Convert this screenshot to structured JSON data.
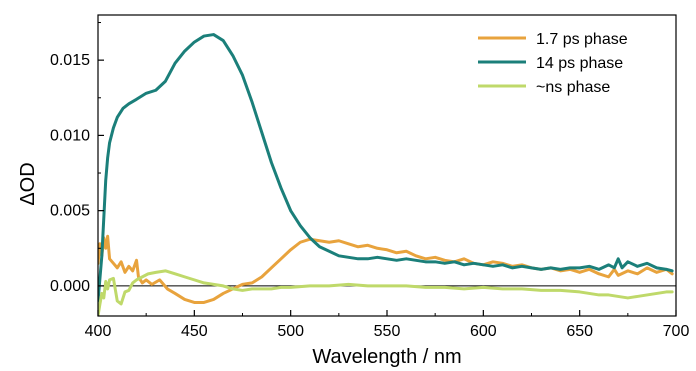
{
  "chart_data": {
    "type": "line",
    "title": "",
    "xlabel": "Wavelength / nm",
    "ylabel": "ΔOD",
    "xlim": [
      400,
      700
    ],
    "ylim": [
      -0.002,
      0.018
    ],
    "x_ticks": [
      400,
      450,
      500,
      550,
      600,
      650,
      700
    ],
    "y_ticks": [
      0.0,
      0.005,
      0.01,
      0.015
    ],
    "x_tick_labels": [
      "400",
      "450",
      "500",
      "550",
      "600",
      "650",
      "700"
    ],
    "y_tick_labels": [
      "0.000",
      "0.005",
      "0.010",
      "0.015"
    ],
    "zero_line": true,
    "grid": false,
    "legend_position": "top-right",
    "series": [
      {
        "name": "1.7 ps phase",
        "color": "#E8A33D",
        "points": [
          [
            400,
            0.0015
          ],
          [
            401,
            0.0028
          ],
          [
            402,
            0.002
          ],
          [
            403,
            0.0032
          ],
          [
            404,
            0.0025
          ],
          [
            405,
            0.0033
          ],
          [
            406,
            0.0018
          ],
          [
            408,
            0.0015
          ],
          [
            410,
            0.0012
          ],
          [
            412,
            0.0016
          ],
          [
            414,
            0.0009
          ],
          [
            416,
            0.0013
          ],
          [
            418,
            0.001
          ],
          [
            420,
            0.0017
          ],
          [
            421,
            0.0006
          ],
          [
            423,
            0.0002
          ],
          [
            425,
            0.0004
          ],
          [
            428,
            0.0001
          ],
          [
            432,
            0.0004
          ],
          [
            436,
            -0.0002
          ],
          [
            440,
            -0.0005
          ],
          [
            445,
            -0.0009
          ],
          [
            450,
            -0.0011
          ],
          [
            455,
            -0.0011
          ],
          [
            460,
            -0.0009
          ],
          [
            465,
            -0.0005
          ],
          [
            470,
            -0.0002
          ],
          [
            475,
            0.0001
          ],
          [
            480,
            0.0002
          ],
          [
            485,
            0.0006
          ],
          [
            490,
            0.0012
          ],
          [
            495,
            0.0018
          ],
          [
            500,
            0.0024
          ],
          [
            505,
            0.0029
          ],
          [
            510,
            0.0031
          ],
          [
            515,
            0.003
          ],
          [
            520,
            0.0029
          ],
          [
            525,
            0.003
          ],
          [
            530,
            0.0028
          ],
          [
            535,
            0.0026
          ],
          [
            540,
            0.0027
          ],
          [
            545,
            0.0025
          ],
          [
            550,
            0.0024
          ],
          [
            555,
            0.0022
          ],
          [
            560,
            0.0023
          ],
          [
            565,
            0.002
          ],
          [
            570,
            0.0018
          ],
          [
            575,
            0.0019
          ],
          [
            580,
            0.0017
          ],
          [
            585,
            0.0016
          ],
          [
            590,
            0.0018
          ],
          [
            595,
            0.0015
          ],
          [
            600,
            0.0014
          ],
          [
            605,
            0.0016
          ],
          [
            610,
            0.0015
          ],
          [
            615,
            0.0013
          ],
          [
            620,
            0.0014
          ],
          [
            625,
            0.0012
          ],
          [
            630,
            0.0011
          ],
          [
            635,
            0.0012
          ],
          [
            640,
            0.001
          ],
          [
            645,
            0.0011
          ],
          [
            650,
            0.0009
          ],
          [
            655,
            0.0011
          ],
          [
            660,
            0.0008
          ],
          [
            665,
            0.0006
          ],
          [
            668,
            0.0011
          ],
          [
            670,
            0.0007
          ],
          [
            675,
            0.001
          ],
          [
            680,
            0.0008
          ],
          [
            685,
            0.0012
          ],
          [
            690,
            0.0009
          ],
          [
            695,
            0.0011
          ],
          [
            698,
            0.0008
          ]
        ]
      },
      {
        "name": "14 ps phase",
        "color": "#1B7F7A",
        "points": [
          [
            400,
            -0.001
          ],
          [
            401,
            0.0005
          ],
          [
            402,
            0.002
          ],
          [
            403,
            0.0045
          ],
          [
            404,
            0.007
          ],
          [
            405,
            0.0085
          ],
          [
            406,
            0.0095
          ],
          [
            408,
            0.0105
          ],
          [
            410,
            0.0112
          ],
          [
            413,
            0.0118
          ],
          [
            416,
            0.0121
          ],
          [
            420,
            0.0124
          ],
          [
            425,
            0.0128
          ],
          [
            430,
            0.013
          ],
          [
            435,
            0.0136
          ],
          [
            440,
            0.0148
          ],
          [
            445,
            0.0156
          ],
          [
            450,
            0.0162
          ],
          [
            455,
            0.0166
          ],
          [
            460,
            0.0167
          ],
          [
            465,
            0.0163
          ],
          [
            470,
            0.0153
          ],
          [
            475,
            0.014
          ],
          [
            480,
            0.0122
          ],
          [
            485,
            0.0102
          ],
          [
            490,
            0.0082
          ],
          [
            495,
            0.0065
          ],
          [
            500,
            0.005
          ],
          [
            505,
            0.004
          ],
          [
            510,
            0.0032
          ],
          [
            515,
            0.0026
          ],
          [
            520,
            0.0023
          ],
          [
            525,
            0.002
          ],
          [
            530,
            0.0019
          ],
          [
            535,
            0.0018
          ],
          [
            540,
            0.0018
          ],
          [
            545,
            0.0019
          ],
          [
            550,
            0.0018
          ],
          [
            555,
            0.0017
          ],
          [
            560,
            0.0018
          ],
          [
            565,
            0.0017
          ],
          [
            570,
            0.0016
          ],
          [
            575,
            0.0016
          ],
          [
            580,
            0.0015
          ],
          [
            585,
            0.0016
          ],
          [
            590,
            0.0014
          ],
          [
            595,
            0.0015
          ],
          [
            600,
            0.0014
          ],
          [
            605,
            0.0013
          ],
          [
            610,
            0.0014
          ],
          [
            615,
            0.0012
          ],
          [
            620,
            0.0013
          ],
          [
            625,
            0.0012
          ],
          [
            630,
            0.0011
          ],
          [
            635,
            0.0012
          ],
          [
            640,
            0.0011
          ],
          [
            645,
            0.0012
          ],
          [
            650,
            0.0012
          ],
          [
            655,
            0.0013
          ],
          [
            660,
            0.0011
          ],
          [
            665,
            0.0014
          ],
          [
            668,
            0.0012
          ],
          [
            670,
            0.0018
          ],
          [
            672,
            0.0012
          ],
          [
            675,
            0.0016
          ],
          [
            680,
            0.0013
          ],
          [
            685,
            0.0015
          ],
          [
            690,
            0.0012
          ],
          [
            695,
            0.0011
          ],
          [
            698,
            0.001
          ]
        ]
      },
      {
        "name": "~ns phase",
        "color": "#BFD96A",
        "points": [
          [
            400,
            -0.002
          ],
          [
            401,
            -0.0012
          ],
          [
            402,
            -0.0005
          ],
          [
            403,
            -0.0008
          ],
          [
            404,
            0.0003
          ],
          [
            405,
            -0.0002
          ],
          [
            406,
            0.0004
          ],
          [
            408,
            0.0005
          ],
          [
            410,
            -0.001
          ],
          [
            412,
            -0.0012
          ],
          [
            414,
            -0.0004
          ],
          [
            416,
            -0.0003
          ],
          [
            418,
            0.0002
          ],
          [
            420,
            0.0004
          ],
          [
            423,
            0.0006
          ],
          [
            426,
            0.0008
          ],
          [
            430,
            0.0009
          ],
          [
            435,
            0.001
          ],
          [
            440,
            0.0008
          ],
          [
            445,
            0.0006
          ],
          [
            450,
            0.0004
          ],
          [
            455,
            0.0002
          ],
          [
            460,
            0.0001
          ],
          [
            465,
            0.0
          ],
          [
            470,
            -0.0002
          ],
          [
            475,
            -0.0003
          ],
          [
            480,
            -0.0002
          ],
          [
            485,
            -0.0002
          ],
          [
            490,
            -0.0002
          ],
          [
            495,
            -0.0001
          ],
          [
            500,
            -0.0001
          ],
          [
            510,
            0.0
          ],
          [
            520,
            0.0
          ],
          [
            530,
            0.0001
          ],
          [
            540,
            0.0
          ],
          [
            550,
            0.0
          ],
          [
            560,
            0.0
          ],
          [
            570,
            -0.0001
          ],
          [
            580,
            -0.0001
          ],
          [
            590,
            -0.0002
          ],
          [
            600,
            -0.0001
          ],
          [
            610,
            -0.0002
          ],
          [
            620,
            -0.0002
          ],
          [
            630,
            -0.0003
          ],
          [
            640,
            -0.0003
          ],
          [
            650,
            -0.0004
          ],
          [
            655,
            -0.0005
          ],
          [
            660,
            -0.0006
          ],
          [
            665,
            -0.0006
          ],
          [
            670,
            -0.0007
          ],
          [
            675,
            -0.0008
          ],
          [
            680,
            -0.0007
          ],
          [
            685,
            -0.0006
          ],
          [
            690,
            -0.0005
          ],
          [
            695,
            -0.0004
          ],
          [
            698,
            -0.0004
          ]
        ]
      }
    ]
  }
}
